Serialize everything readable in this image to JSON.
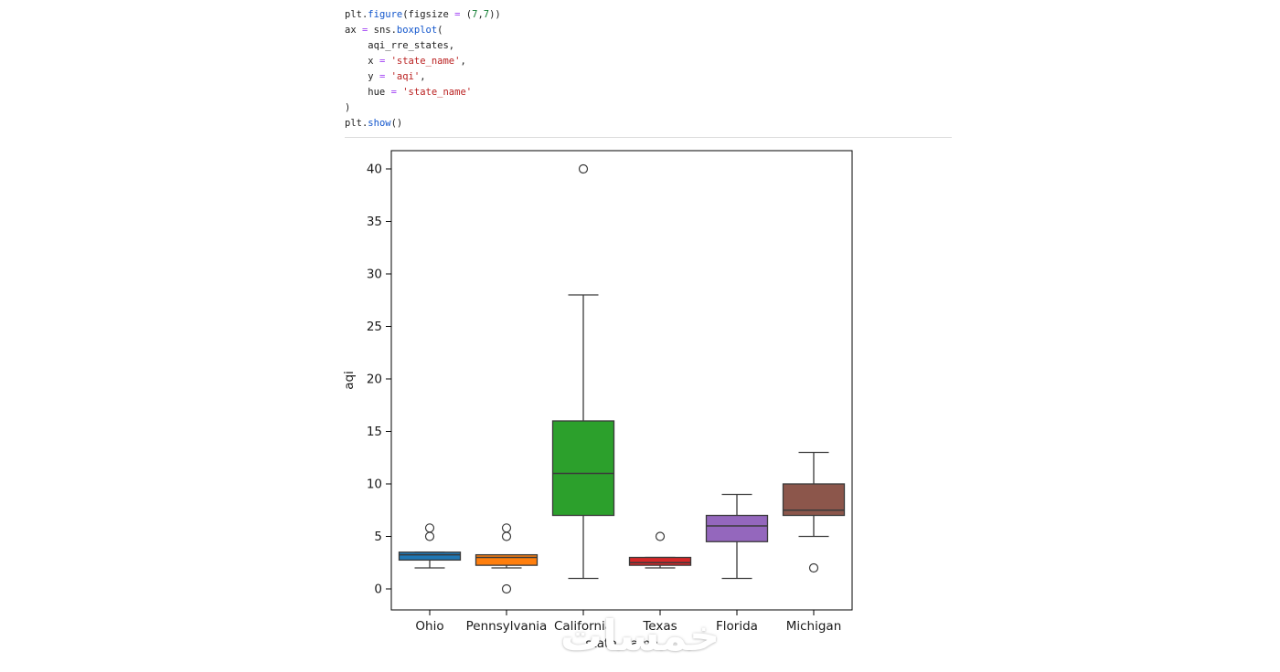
{
  "code": {
    "lines": [
      [
        {
          "t": "plt.",
          "c": "plain"
        },
        {
          "t": "figure",
          "c": "func"
        },
        {
          "t": "(figsize ",
          "c": "plain"
        },
        {
          "t": "=",
          "c": "op"
        },
        {
          "t": " (",
          "c": "plain"
        },
        {
          "t": "7",
          "c": "num"
        },
        {
          "t": ",",
          "c": "plain"
        },
        {
          "t": "7",
          "c": "num"
        },
        {
          "t": "))",
          "c": "plain"
        }
      ],
      [
        {
          "t": "ax ",
          "c": "plain"
        },
        {
          "t": "=",
          "c": "op"
        },
        {
          "t": " sns.",
          "c": "plain"
        },
        {
          "t": "boxplot",
          "c": "func"
        },
        {
          "t": "(",
          "c": "plain"
        }
      ],
      [
        {
          "t": "    aqi_rre_states,",
          "c": "plain"
        }
      ],
      [
        {
          "t": "    x ",
          "c": "plain"
        },
        {
          "t": "=",
          "c": "op"
        },
        {
          "t": " ",
          "c": "plain"
        },
        {
          "t": "'state_name'",
          "c": "str"
        },
        {
          "t": ",",
          "c": "plain"
        }
      ],
      [
        {
          "t": "    y ",
          "c": "plain"
        },
        {
          "t": "=",
          "c": "op"
        },
        {
          "t": " ",
          "c": "plain"
        },
        {
          "t": "'aqi'",
          "c": "str"
        },
        {
          "t": ",",
          "c": "plain"
        }
      ],
      [
        {
          "t": "    hue ",
          "c": "plain"
        },
        {
          "t": "=",
          "c": "op"
        },
        {
          "t": " ",
          "c": "plain"
        },
        {
          "t": "'state_name'",
          "c": "str"
        }
      ],
      [
        {
          "t": ")",
          "c": "plain"
        }
      ],
      [
        {
          "t": "plt.",
          "c": "plain"
        },
        {
          "t": "show",
          "c": "func"
        },
        {
          "t": "()",
          "c": "plain"
        }
      ]
    ]
  },
  "chart_data": {
    "type": "box",
    "title": "",
    "xlabel": "state_name",
    "ylabel": "aqi",
    "ylim": [
      -2,
      42
    ],
    "yticks": [
      0,
      5,
      10,
      15,
      20,
      25,
      30,
      35,
      40
    ],
    "grid": false,
    "legend": false,
    "categories": [
      "Ohio",
      "Pennsylvania",
      "California",
      "Texas",
      "Florida",
      "Michigan"
    ],
    "boxes": [
      {
        "state": "Ohio",
        "color": "#1f77b4",
        "whislo": 2,
        "q1": 2.75,
        "med": 3.25,
        "q3": 3.5,
        "whishi": 3.5,
        "outliers": [
          5,
          5.8
        ]
      },
      {
        "state": "Pennsylvania",
        "color": "#ff7f0e",
        "whislo": 2,
        "q1": 2.25,
        "med": 3,
        "q3": 3.25,
        "whishi": 3.25,
        "outliers": [
          0,
          5,
          5.8
        ]
      },
      {
        "state": "California",
        "color": "#2ca02c",
        "whislo": 1,
        "q1": 7,
        "med": 11,
        "q3": 16,
        "whishi": 28,
        "outliers": [
          40
        ]
      },
      {
        "state": "Texas",
        "color": "#d62728",
        "whislo": 2,
        "q1": 2.25,
        "med": 2.5,
        "q3": 3,
        "whishi": 3,
        "outliers": [
          5
        ]
      },
      {
        "state": "Florida",
        "color": "#9467bd",
        "whislo": 1,
        "q1": 4.5,
        "med": 6,
        "q3": 7,
        "whishi": 9,
        "outliers": []
      },
      {
        "state": "Michigan",
        "color": "#8c564b",
        "whislo": 5,
        "q1": 7,
        "med": 7.5,
        "q3": 10,
        "whishi": 13,
        "outliers": [
          2
        ]
      }
    ],
    "edge_color": "#3a3a3a",
    "spine_color": "#000000"
  },
  "watermark": {
    "text": "خمسات"
  }
}
